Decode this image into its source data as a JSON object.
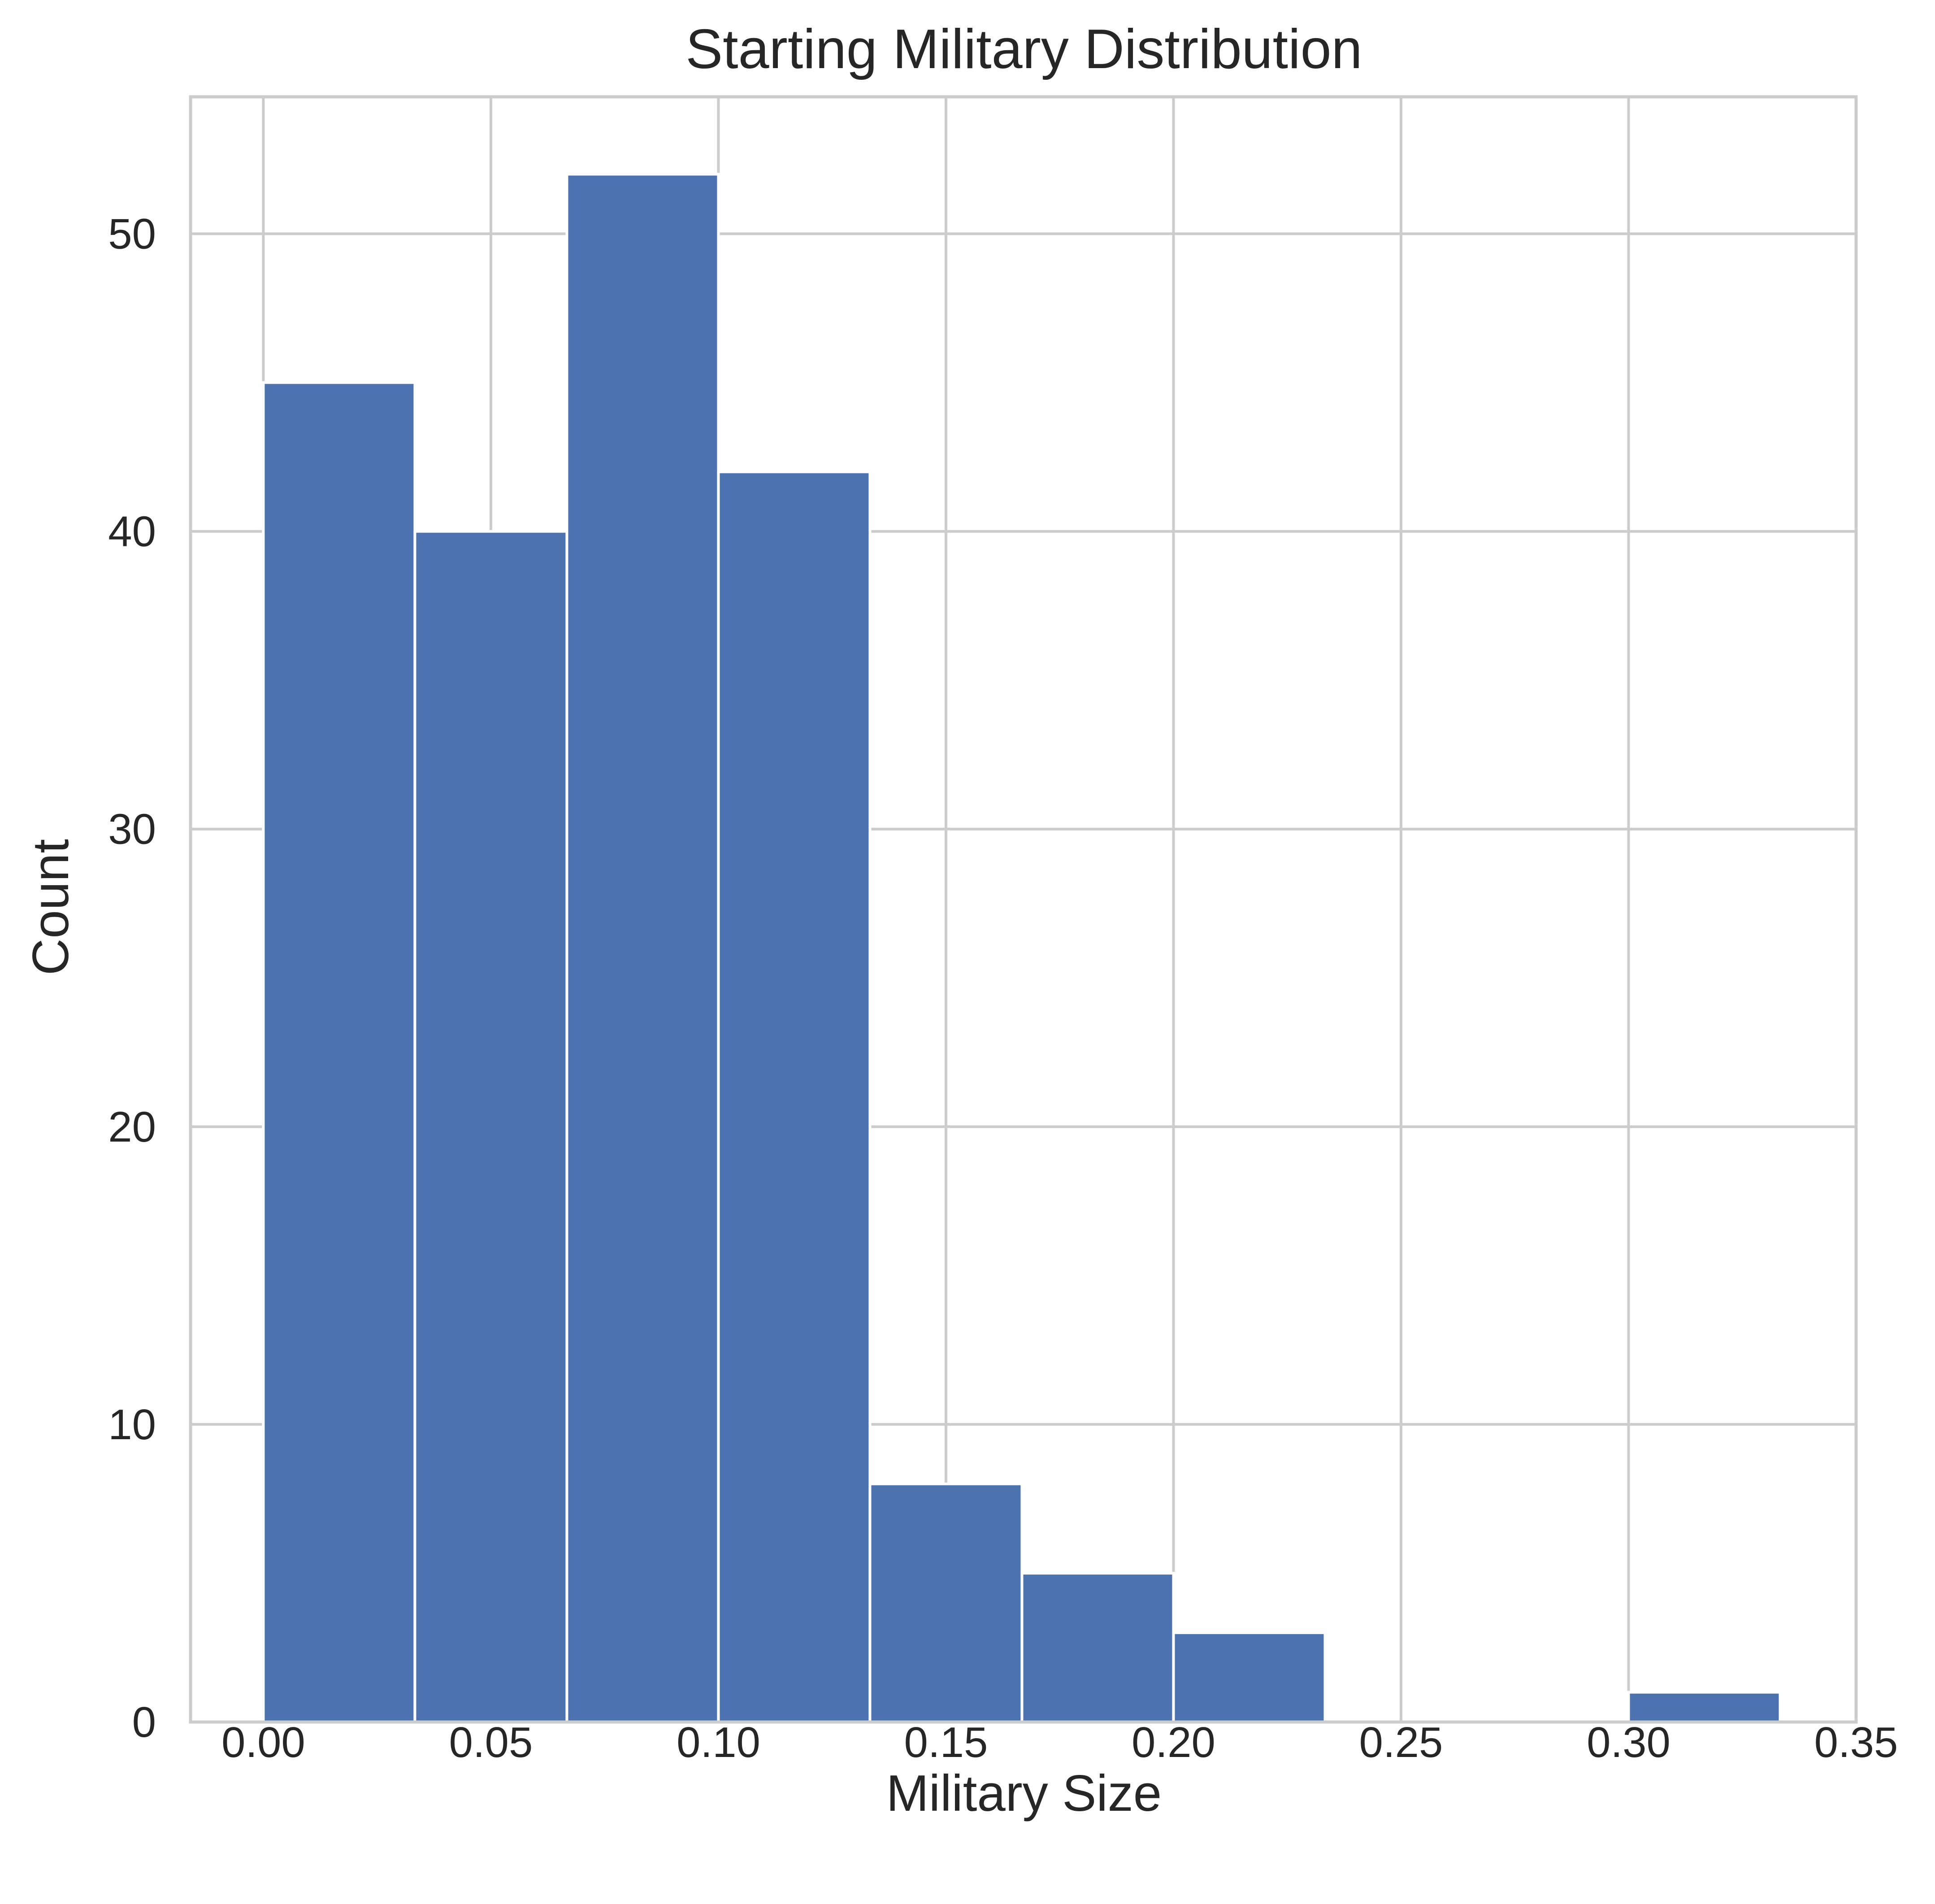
{
  "chart_data": {
    "type": "bar",
    "title": "Starting Military Distribution",
    "xlabel": "Military Size",
    "ylabel": "Count",
    "bin_edges": [
      0.0,
      0.0333,
      0.0667,
      0.1,
      0.1333,
      0.1667,
      0.2,
      0.2333,
      0.2667,
      0.3,
      0.3333
    ],
    "values": [
      45,
      40,
      52,
      42,
      8,
      5,
      3,
      0,
      0,
      1
    ],
    "xlim": [
      -0.016,
      0.35
    ],
    "ylim": [
      0,
      54.6
    ],
    "xticks": [
      0.0,
      0.05,
      0.1,
      0.15,
      0.2,
      0.25,
      0.3,
      0.35
    ],
    "xtick_labels": [
      "0.00",
      "0.05",
      "0.10",
      "0.15",
      "0.20",
      "0.25",
      "0.30",
      "0.35"
    ],
    "yticks": [
      0,
      10,
      20,
      30,
      40,
      50
    ],
    "ytick_labels": [
      "0",
      "10",
      "20",
      "30",
      "40",
      "50"
    ],
    "grid": true,
    "colors": {
      "bar": "#4c72b0",
      "grid": "#cccccc",
      "text": "#262626"
    }
  }
}
